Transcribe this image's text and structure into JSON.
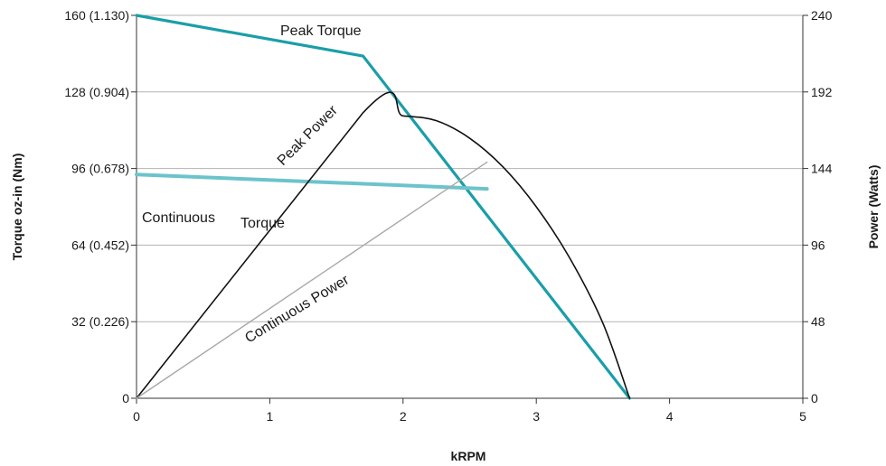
{
  "chart_data": {
    "type": "line",
    "xlabel": "kRPM",
    "ylabel_left": "Torque oz-in (Nm)",
    "ylabel_right": "Power (Watts)",
    "xlim": [
      0,
      5
    ],
    "ylim_left": [
      0,
      160
    ],
    "ylim_right": [
      0,
      240
    ],
    "grid": true,
    "x_ticks": [
      "0",
      "1",
      "2",
      "3",
      "4",
      "5"
    ],
    "y_ticks_left": [
      "0",
      "32 (0.226)",
      "64 (0.452)",
      "96 (0.678)",
      "128 (0.904)",
      "160 (1.130)"
    ],
    "y_ticks_right": [
      "0",
      "48",
      "96",
      "144",
      "192",
      "240"
    ],
    "series": [
      {
        "name": "Peak Torque",
        "axis": "left",
        "color": "#1a9ea8",
        "points": [
          [
            0,
            160
          ],
          [
            1.7,
            143
          ],
          [
            3.7,
            0
          ]
        ]
      },
      {
        "name": "Continuous Torque",
        "axis": "left",
        "color": "#6cc3cb",
        "points": [
          [
            0,
            93.5
          ],
          [
            2.63,
            87.5
          ]
        ]
      },
      {
        "name": "Peak Power",
        "axis": "right",
        "color": "#111111",
        "points": [
          [
            0,
            0
          ],
          [
            1.7,
            179
          ],
          [
            2.0,
            177
          ],
          [
            2.25,
            174
          ],
          [
            2.5,
            163
          ],
          [
            2.75,
            145
          ],
          [
            3.0,
            120
          ],
          [
            3.25,
            88
          ],
          [
            3.5,
            47
          ],
          [
            3.7,
            0
          ]
        ]
      },
      {
        "name": "Continuous Power",
        "axis": "right",
        "color": "#a8a8a8",
        "points": [
          [
            0,
            0
          ],
          [
            2.63,
            148
          ]
        ]
      }
    ]
  },
  "labels": {
    "peak_torque": "Peak Torque",
    "peak_power": "Peak Power",
    "continuous_torque_1": "Continuous",
    "continuous_torque_2": "Torque",
    "continuous_power": "Continuous Power"
  }
}
